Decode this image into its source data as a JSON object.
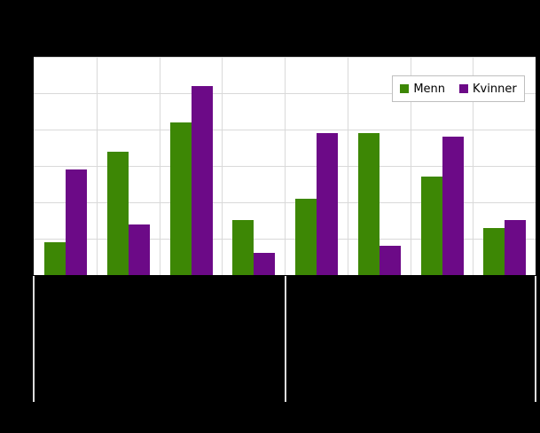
{
  "legend": {
    "items": [
      {
        "label": "Menn",
        "color": "#3d8705"
      },
      {
        "label": "Kvinner",
        "color": "#6c0a87"
      }
    ]
  },
  "chart_data": {
    "type": "bar",
    "categories": [
      "",
      "",
      "",
      "",
      "",
      "",
      "",
      ""
    ],
    "series": [
      {
        "name": "Menn",
        "color": "#3d8705",
        "values": [
          9,
          34,
          42,
          15,
          21,
          39,
          27,
          13
        ]
      },
      {
        "name": "Kvinner",
        "color": "#6c0a87",
        "values": [
          29,
          14,
          52,
          6,
          39,
          8,
          38,
          15
        ]
      }
    ],
    "ylim": [
      0,
      60
    ],
    "y_gridline_interval": 10,
    "x_category_groups": 2,
    "categories_per_group": 4,
    "grid": true,
    "legend_position": "top-right",
    "axis_tick_labels_visible": false
  },
  "colors": {
    "background": "#000000",
    "plot_background": "#ffffff",
    "gridline": "#d9d9d9",
    "separator": "#dcdcdc",
    "legend_border": "#bfbfbf"
  }
}
